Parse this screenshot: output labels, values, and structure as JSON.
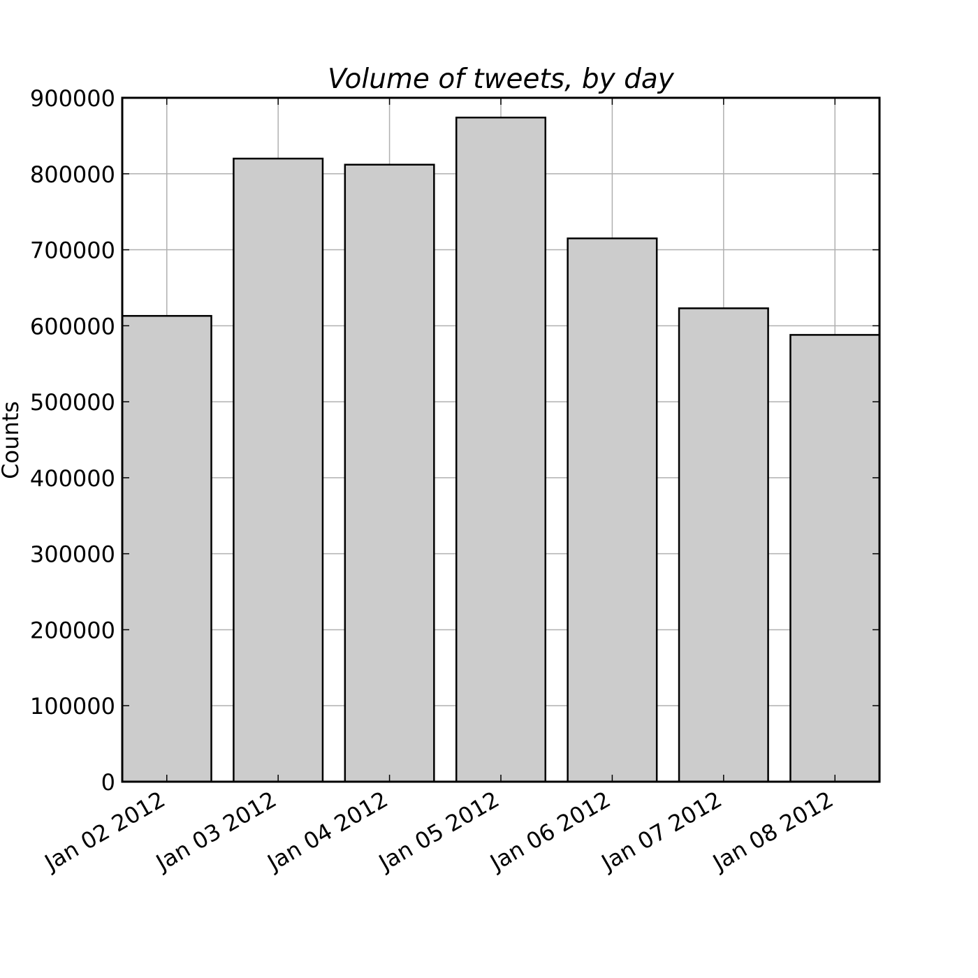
{
  "chart_data": {
    "type": "bar",
    "title": "Volume of tweets, by day",
    "xlabel": "",
    "ylabel": "Counts",
    "categories": [
      "Jan 02 2012",
      "Jan 03 2012",
      "Jan 04 2012",
      "Jan 05 2012",
      "Jan 06 2012",
      "Jan 07 2012",
      "Jan 08 2012"
    ],
    "values": [
      613000,
      820000,
      812000,
      874000,
      715000,
      623000,
      588000
    ],
    "ylim": [
      0,
      900000
    ],
    "yticks": [
      0,
      100000,
      200000,
      300000,
      400000,
      500000,
      600000,
      700000,
      800000,
      900000
    ],
    "ytick_labels": [
      "0",
      "100000",
      "200000",
      "300000",
      "400000",
      "500000",
      "600000",
      "700000",
      "800000",
      "900000"
    ],
    "grid": true,
    "colors": {
      "bar_fill": "#cccccc",
      "bar_edge": "#000000",
      "grid": "#b0b0b0",
      "axes": "#000000"
    }
  }
}
